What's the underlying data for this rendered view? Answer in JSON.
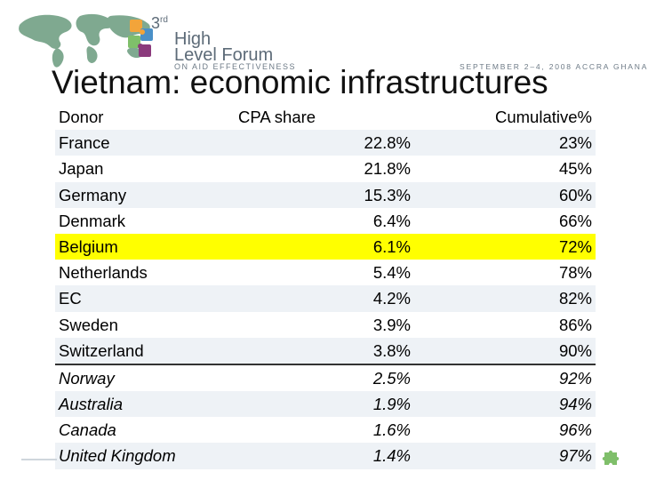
{
  "header": {
    "forum_number": "3",
    "forum_number_suffix": "rd",
    "forum_line1": "High",
    "forum_line2": "Level Forum",
    "forum_subtitle": "ON AID EFFECTIVENESS",
    "event": "SEPTEMBER 2–4, 2008 ACCRA GHANA",
    "colors": {
      "map": "#7fa990",
      "puzzle_orange": "#f2a43a",
      "puzzle_blue": "#4a90c8",
      "puzzle_purple": "#8b3a7c",
      "puzzle_green": "#7fbf6a"
    }
  },
  "title": "Vietnam: economic infrastructures",
  "table": {
    "columns": [
      "Donor",
      "CPA share",
      "Cumulative%"
    ],
    "rows": [
      {
        "donor": "France",
        "share": "22.8%",
        "cumulative": "23%"
      },
      {
        "donor": "Japan",
        "share": "21.8%",
        "cumulative": "45%"
      },
      {
        "donor": "Germany",
        "share": "15.3%",
        "cumulative": "60%"
      },
      {
        "donor": "Denmark",
        "share": "6.4%",
        "cumulative": "66%"
      },
      {
        "donor": "Belgium",
        "share": "6.1%",
        "cumulative": "72%"
      },
      {
        "donor": "Netherlands",
        "share": "5.4%",
        "cumulative": "78%"
      },
      {
        "donor": "EC",
        "share": "4.2%",
        "cumulative": "82%"
      },
      {
        "donor": "Sweden",
        "share": "3.9%",
        "cumulative": "86%"
      },
      {
        "donor": "Switzerland",
        "share": "3.8%",
        "cumulative": "90%"
      },
      {
        "donor": "Norway",
        "share": "2.5%",
        "cumulative": "92%"
      },
      {
        "donor": "Australia",
        "share": "1.9%",
        "cumulative": "94%"
      },
      {
        "donor": "Canada",
        "share": "1.6%",
        "cumulative": "96%"
      },
      {
        "donor": "United Kingdom",
        "share": "1.4%",
        "cumulative": "97%"
      }
    ],
    "highlight_color": "#ffff00"
  }
}
